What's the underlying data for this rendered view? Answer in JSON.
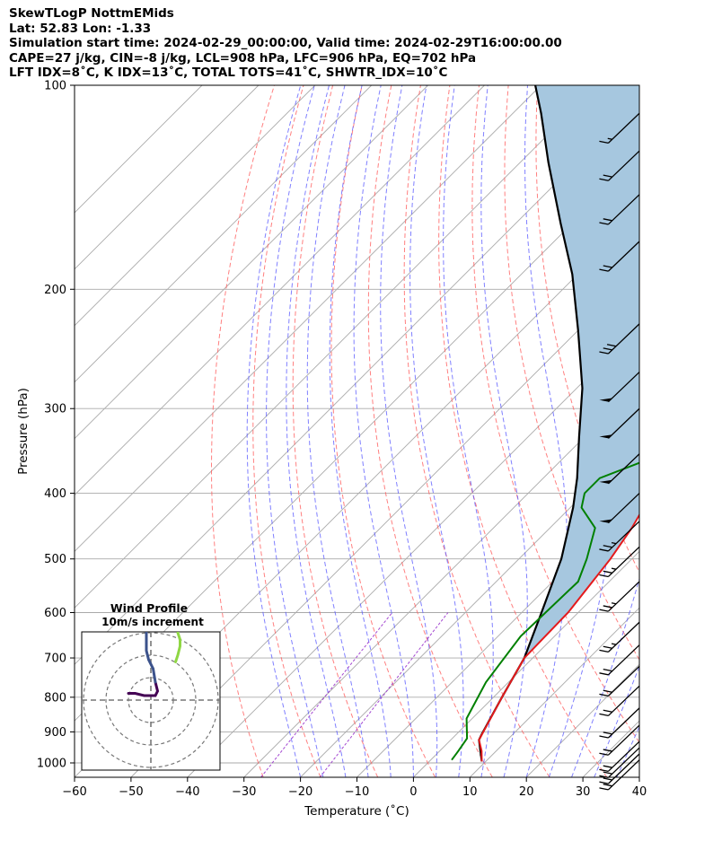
{
  "header": {
    "line1": "SkewTLogP NottmEMids",
    "line2": "Lat: 52.83   Lon: -1.33",
    "line3": "Simulation start time: 2024-02-29_00:00:00, Valid time: 2024-02-29T16:00:00.00",
    "line4": "CAPE=27 j/kg, CIN=-8 j/kg, LCL=908 hPa, LFC=906 hPa, EQ=702 hPa",
    "line5": "LFT IDX=8˚C, K IDX=13˚C, TOTAL TOTS=41˚C, SHWTR_IDX=10˚C"
  },
  "chart_data": {
    "type": "line",
    "subtype": "skew-t log-p diagram",
    "xlabel": "Temperature (˚C)",
    "ylabel": "Pressure (hPa)",
    "xlim": [
      -60,
      40
    ],
    "ylim": [
      1050,
      100
    ],
    "yscale": "log",
    "grid": true,
    "xticks": [
      -60,
      -50,
      -40,
      -30,
      -20,
      -10,
      0,
      10,
      20,
      30,
      40
    ],
    "yticks": [
      100,
      200,
      300,
      400,
      500,
      600,
      700,
      800,
      900,
      1000
    ],
    "colors": {
      "temperature": "#e41a1c",
      "dewpoint": "#008000",
      "parcel": "#000000",
      "cape_fill": "#a6c7df",
      "dry_adiabat": "#ff6060",
      "moist_adiabat": "#5555ff",
      "mixing_ratio": "#9933cc",
      "isotherm": "#aaaaaa"
    },
    "series": [
      {
        "key": "temperature",
        "points": [
          [
            9.3,
            995
          ],
          [
            7.4,
            960
          ],
          [
            5.0,
            925
          ],
          [
            1.5,
            800
          ],
          [
            -1.5,
            700
          ],
          [
            -1.8,
            600
          ],
          [
            -3.8,
            500
          ],
          [
            -5.5,
            450
          ],
          [
            -7.0,
            420
          ],
          [
            -7.8,
            400
          ],
          [
            -8.5,
            350
          ],
          [
            -8.5,
            300
          ],
          [
            -8.0,
            250
          ],
          [
            -6.5,
            230
          ],
          [
            -4.0,
            210
          ],
          [
            -1.0,
            190
          ],
          [
            2.0,
            160
          ],
          [
            4.5,
            140
          ],
          [
            7.0,
            130
          ],
          [
            10.0,
            115
          ],
          [
            12.0,
            100
          ]
        ]
      },
      {
        "key": "dewpoint",
        "points": [
          [
            3.7,
            990
          ],
          [
            3.3,
            960
          ],
          [
            2.6,
            920
          ],
          [
            -1.0,
            860
          ],
          [
            -4.0,
            760
          ],
          [
            -6.0,
            650
          ],
          [
            -5.5,
            540
          ],
          [
            -8.0,
            500
          ],
          [
            -12.0,
            450
          ],
          [
            -18.0,
            420
          ],
          [
            -20.0,
            400
          ],
          [
            -20.0,
            380
          ],
          [
            -15.5,
            360
          ],
          [
            -13.0,
            320
          ],
          [
            -14.0,
            300
          ],
          [
            -16.0,
            280
          ],
          [
            -20.0,
            250
          ],
          [
            -24.0,
            210
          ],
          [
            -27.0,
            190
          ],
          [
            -28.0,
            175
          ],
          [
            -27.0,
            160
          ],
          [
            -26.0,
            140
          ],
          [
            -24.0,
            120
          ],
          [
            -22.0,
            100
          ]
        ]
      },
      {
        "key": "parcel",
        "points": [
          [
            9.3,
            995
          ],
          [
            5.0,
            925
          ],
          [
            4.5,
            908
          ],
          [
            1.5,
            800
          ],
          [
            -1.5,
            700
          ],
          [
            -6.5,
            600
          ],
          [
            -12.5,
            500
          ],
          [
            -19.5,
            420
          ],
          [
            -24.0,
            380
          ],
          [
            -31.0,
            330
          ],
          [
            -39.0,
            280
          ],
          [
            -50.0,
            230
          ],
          [
            -61.0,
            190
          ],
          [
            -72.0,
            160
          ],
          [
            -85.0,
            130
          ],
          [
            -95.0,
            110
          ],
          [
            -101.0,
            100
          ]
        ]
      }
    ],
    "wind_barbs": [
      {
        "p": 990,
        "speed_kt": 20
      },
      {
        "p": 970,
        "speed_kt": 20
      },
      {
        "p": 950,
        "speed_kt": 20
      },
      {
        "p": 930,
        "speed_kt": 20
      },
      {
        "p": 880,
        "speed_kt": 20
      },
      {
        "p": 830,
        "speed_kt": 20
      },
      {
        "p": 770,
        "speed_kt": 20
      },
      {
        "p": 720,
        "speed_kt": 20
      },
      {
        "p": 670,
        "speed_kt": 20
      },
      {
        "p": 620,
        "speed_kt": 25
      },
      {
        "p": 540,
        "speed_kt": 25
      },
      {
        "p": 480,
        "speed_kt": 25
      },
      {
        "p": 440,
        "speed_kt": 25
      },
      {
        "p": 400,
        "speed_kt": 50
      },
      {
        "p": 350,
        "speed_kt": 50
      },
      {
        "p": 300,
        "speed_kt": 50
      },
      {
        "p": 265,
        "speed_kt": 50
      },
      {
        "p": 225,
        "speed_kt": 30
      },
      {
        "p": 170,
        "speed_kt": 20
      },
      {
        "p": 145,
        "speed_kt": 20
      },
      {
        "p": 125,
        "speed_kt": 20
      },
      {
        "p": 110,
        "speed_kt": 15
      }
    ],
    "hodograph": {
      "title_line1": "Wind Profile",
      "title_line2": "10m/s increment",
      "ring_step_ms": 10,
      "rings": 3,
      "segments": [
        {
          "color": "#440154",
          "points": [
            [
              -10,
              3
            ],
            [
              -7,
              3
            ],
            [
              -3,
              2
            ],
            [
              0,
              2
            ],
            [
              2,
              2
            ],
            [
              3,
              4
            ],
            [
              2,
              8
            ]
          ]
        },
        {
          "color": "#3b528b",
          "points": [
            [
              2,
              8
            ],
            [
              1,
              14
            ],
            [
              -1,
              18
            ],
            [
              -2,
              22
            ],
            [
              -2,
              26
            ],
            [
              -2,
              30
            ]
          ]
        },
        {
          "color": "#8fd744",
          "points": [
            [
              11,
              17
            ],
            [
              12,
              20
            ],
            [
              13,
              24
            ],
            [
              13,
              27
            ],
            [
              12,
              30
            ],
            [
              13,
              34
            ]
          ]
        }
      ]
    }
  }
}
